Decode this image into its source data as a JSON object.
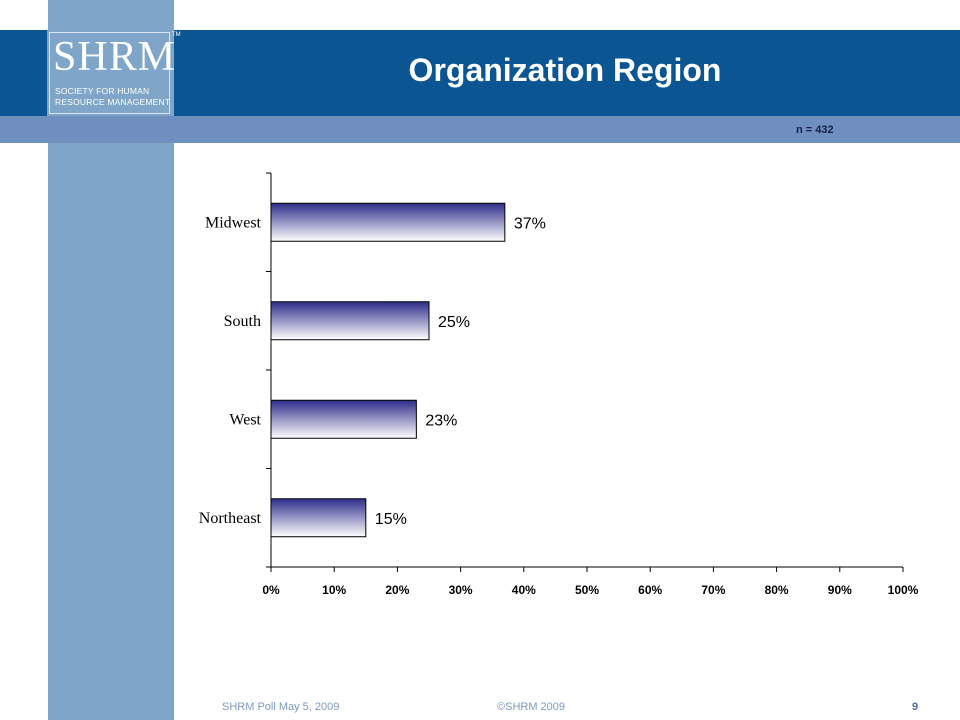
{
  "brand": {
    "logo_mark": "SHRM",
    "logo_tm": "TM",
    "logo_line1": "SOCIETY FOR HUMAN",
    "logo_line2": "RESOURCE MANAGEMENT"
  },
  "header": {
    "title": "Organization Region",
    "sample_size": "n = 432"
  },
  "colors": {
    "header_band": "#0a5592",
    "sub_band": "#6e8fbf",
    "left_stripe": "#7fa6c9",
    "bar_dark": "#2e2d8a",
    "bar_light": "#ffffff"
  },
  "chart_data": {
    "type": "bar",
    "orientation": "horizontal",
    "categories": [
      "Midwest",
      "South",
      "West",
      "Northeast"
    ],
    "values": [
      37,
      25,
      23,
      15
    ],
    "value_labels": [
      "37%",
      "25%",
      "23%",
      "15%"
    ],
    "xlim": [
      0,
      100
    ],
    "xticks": [
      "0%",
      "10%",
      "20%",
      "30%",
      "40%",
      "50%",
      "60%",
      "70%",
      "80%",
      "90%",
      "100%"
    ],
    "grid": false,
    "legend": "none"
  },
  "footer": {
    "left": "SHRM Poll May 5, 2009",
    "center": "©SHRM 2009",
    "page": "9"
  }
}
